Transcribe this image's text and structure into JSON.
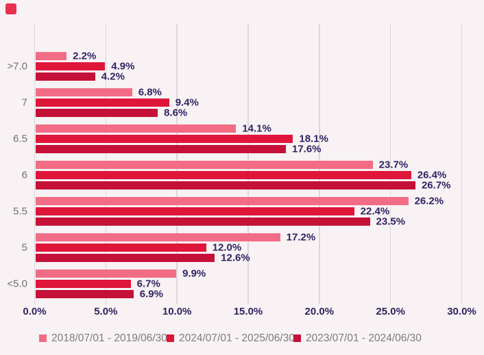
{
  "page": {
    "colors": {
      "background": "#F8F2F4",
      "gridline": "#DCD7D9",
      "value_label": "#2F2262",
      "tick_label": "#2F2262",
      "category_label": "#6F6F74",
      "legend_text": "#7B7B80",
      "logo": "#E8304D"
    }
  },
  "chart_data": {
    "type": "bar",
    "orientation": "horizontal",
    "title": "",
    "xlabel": "",
    "ylabel": "",
    "xlim": [
      0,
      30
    ],
    "grid": true,
    "legend_position": "bottom",
    "categories": [
      ">7.0",
      "7",
      "6.5",
      "6",
      "5.5",
      "5",
      "<5.0"
    ],
    "x_ticks": [
      "0.0%",
      "5.0%",
      "10.0%",
      "15.0%",
      "20.0%",
      "25.0%",
      "30.0%"
    ],
    "series": [
      {
        "name": "2018/07/01 - 2019/06/30",
        "color": "#F36C86",
        "values": [
          2.2,
          6.8,
          14.1,
          23.7,
          26.2,
          17.2,
          9.9
        ],
        "value_labels": [
          "2.2%",
          "6.8%",
          "14.1%",
          "23.7%",
          "26.2%",
          "17.2%",
          "9.9%"
        ]
      },
      {
        "name": "2024/07/01 - 2025/06/30",
        "color": "#E0153A",
        "values": [
          4.9,
          9.4,
          18.1,
          26.4,
          22.4,
          12.0,
          6.7
        ],
        "value_labels": [
          "4.9%",
          "9.4%",
          "18.1%",
          "26.4%",
          "22.4%",
          "12.0%",
          "6.7%"
        ]
      },
      {
        "name": "2023/07/01 - 2024/06/30",
        "color": "#C51038",
        "values": [
          4.2,
          8.6,
          17.6,
          26.7,
          23.5,
          12.6,
          6.9
        ],
        "value_labels": [
          "4.2%",
          "8.6%",
          "17.6%",
          "26.7%",
          "23.5%",
          "12.6%",
          "6.9%"
        ]
      }
    ]
  }
}
